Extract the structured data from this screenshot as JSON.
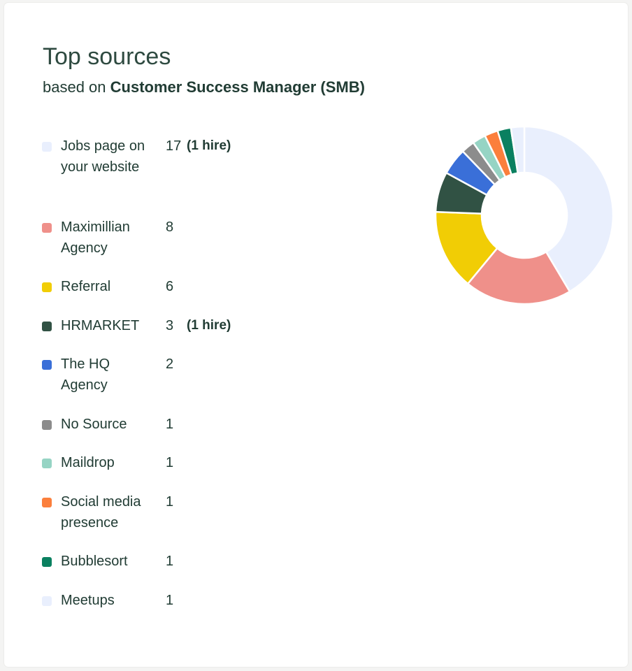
{
  "header": {
    "title": "Top sources",
    "subtitle_prefix": "based on ",
    "subtitle_job": "Customer Success Manager (SMB)"
  },
  "chart_data": {
    "type": "pie",
    "title": "Top sources",
    "subtitle": "based on Customer Success Manager (SMB)",
    "legend": "left",
    "categories": [
      "Jobs page on your website",
      "Maximillian Agency",
      "Referral",
      "HRMARKET",
      "The HQ Agency",
      "No Source",
      "Maildrop",
      "Social media presence",
      "Bubblesort",
      "Meetups"
    ],
    "values": [
      17,
      8,
      6,
      3,
      2,
      1,
      1,
      1,
      1,
      1
    ],
    "annotations": [
      "(1 hire)",
      "",
      "",
      "(1 hire)",
      "",
      "",
      "",
      "",
      "",
      ""
    ],
    "colors": [
      "#e9effd",
      "#ef908a",
      "#f1cd05",
      "#315244",
      "#3a6fd8",
      "#8c8c8c",
      "#96d4c4",
      "#fb7f3c",
      "#0a8060",
      "#e9effd"
    ]
  }
}
